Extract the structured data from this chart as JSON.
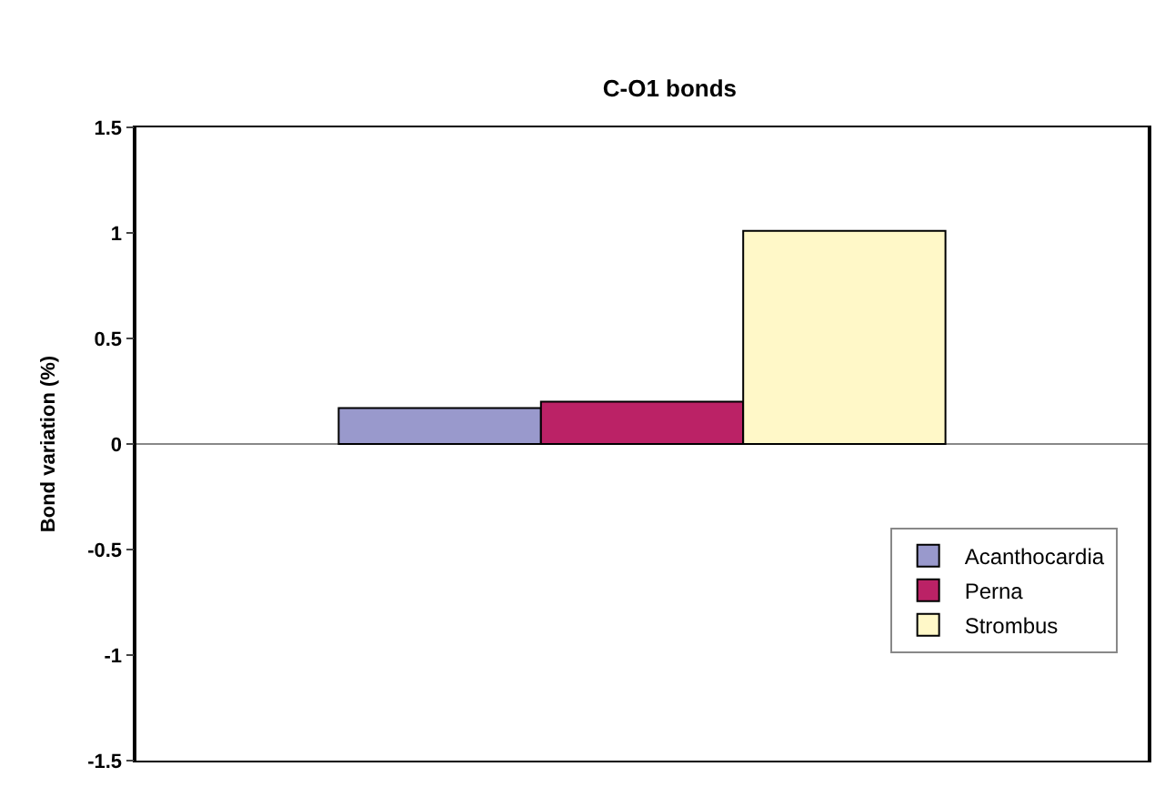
{
  "chart_data": {
    "type": "bar",
    "title": "C-O1 bonds",
    "ylabel": "Bond variation (%)",
    "categories": [
      null
    ],
    "series": [
      {
        "name": "Acanthocardia",
        "color": "#9999cc",
        "values": [
          0.17
        ]
      },
      {
        "name": "Perna",
        "color": "#bb2266",
        "values": [
          0.2
        ]
      },
      {
        "name": "Strombus",
        "color": "#fff8c8",
        "values": [
          1.01
        ]
      }
    ],
    "ylim": [
      -1.5,
      1.5
    ],
    "yticks": [
      -1.5,
      -1,
      -0.5,
      0,
      0.5,
      1,
      1.5
    ],
    "ref_lines": [
      {
        "axis": "y",
        "value": 0,
        "color": "#888888"
      }
    ],
    "legend": "bottom right"
  }
}
